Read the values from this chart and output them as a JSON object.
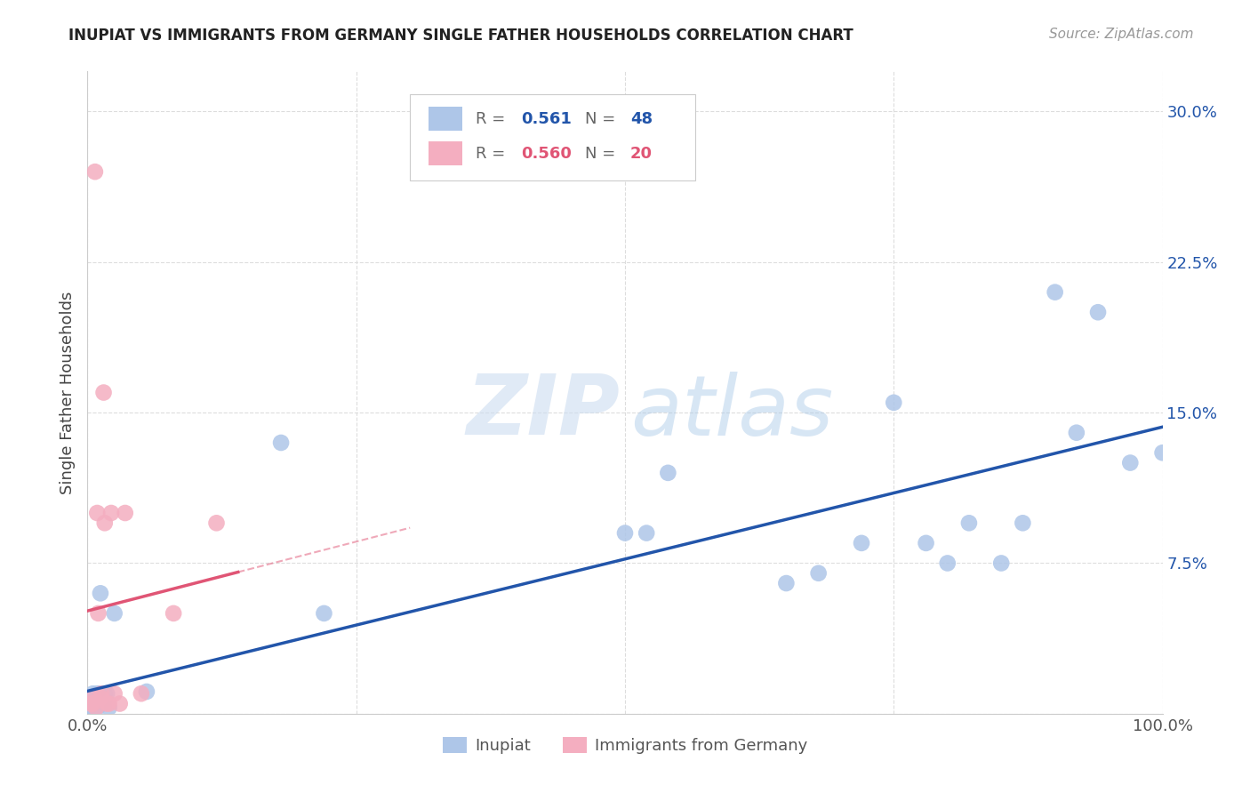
{
  "title": "INUPIAT VS IMMIGRANTS FROM GERMANY SINGLE FATHER HOUSEHOLDS CORRELATION CHART",
  "source": "Source: ZipAtlas.com",
  "ylabel": "Single Father Households",
  "xlim": [
    0,
    1.0
  ],
  "ylim": [
    0,
    0.32
  ],
  "xticks": [
    0.0,
    0.25,
    0.5,
    0.75,
    1.0
  ],
  "xticklabels": [
    "0.0%",
    "",
    "",
    "",
    "100.0%"
  ],
  "yticks": [
    0.0,
    0.075,
    0.15,
    0.225,
    0.3
  ],
  "yticklabels": [
    "",
    "7.5%",
    "15.0%",
    "22.5%",
    "30.0%"
  ],
  "inupiat_color": "#aec6e8",
  "germany_color": "#f4aec0",
  "inupiat_line_color": "#2255aa",
  "germany_line_color": "#e05575",
  "inupiat_R": "0.561",
  "inupiat_N": "48",
  "germany_R": "0.560",
  "germany_N": "20",
  "background_color": "#ffffff",
  "grid_color": "#dddddd",
  "inupiat_x": [
    0.002,
    0.003,
    0.003,
    0.004,
    0.004,
    0.005,
    0.005,
    0.005,
    0.006,
    0.006,
    0.007,
    0.007,
    0.007,
    0.008,
    0.008,
    0.009,
    0.009,
    0.01,
    0.01,
    0.011,
    0.012,
    0.013,
    0.014,
    0.015,
    0.016,
    0.018,
    0.02,
    0.025,
    0.055,
    0.18,
    0.22,
    0.5,
    0.52,
    0.54,
    0.65,
    0.68,
    0.72,
    0.75,
    0.78,
    0.8,
    0.82,
    0.85,
    0.87,
    0.9,
    0.92,
    0.94,
    0.97,
    1.0
  ],
  "inupiat_y": [
    0.005,
    0.003,
    0.008,
    0.005,
    0.003,
    0.003,
    0.007,
    0.01,
    0.005,
    0.008,
    0.003,
    0.007,
    0.005,
    0.005,
    0.008,
    0.003,
    0.01,
    0.005,
    0.008,
    0.01,
    0.06,
    0.005,
    0.005,
    0.008,
    0.01,
    0.01,
    0.003,
    0.05,
    0.011,
    0.135,
    0.05,
    0.09,
    0.09,
    0.12,
    0.065,
    0.07,
    0.085,
    0.155,
    0.085,
    0.075,
    0.095,
    0.075,
    0.095,
    0.21,
    0.14,
    0.2,
    0.125,
    0.13
  ],
  "germany_x": [
    0.003,
    0.005,
    0.006,
    0.007,
    0.008,
    0.009,
    0.01,
    0.012,
    0.013,
    0.015,
    0.016,
    0.018,
    0.02,
    0.022,
    0.025,
    0.03,
    0.035,
    0.05,
    0.08,
    0.12
  ],
  "germany_y": [
    0.005,
    0.005,
    0.008,
    0.27,
    0.003,
    0.1,
    0.05,
    0.008,
    0.01,
    0.16,
    0.095,
    0.005,
    0.005,
    0.1,
    0.01,
    0.005,
    0.1,
    0.01,
    0.05,
    0.095
  ]
}
